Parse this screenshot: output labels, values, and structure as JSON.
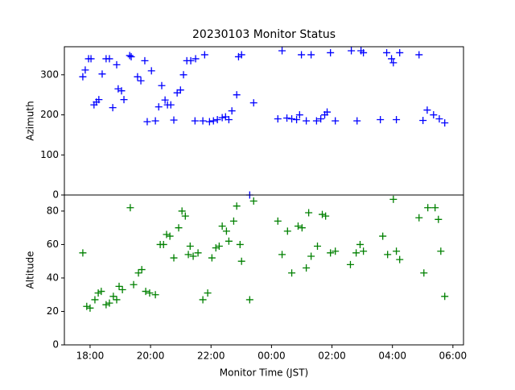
{
  "chart_data": [
    {
      "type": "scatter",
      "title": "20230103 Monitor Status",
      "ylabel": "Azimuth",
      "color": "#0000ff",
      "marker": "+",
      "xlim": [
        17.15,
        30.35
      ],
      "ylim": [
        0,
        370
      ],
      "yticks": [
        0,
        100,
        200,
        300
      ],
      "x": [
        17.76,
        17.84,
        17.95,
        18.03,
        18.13,
        18.21,
        18.29,
        18.4,
        18.53,
        18.64,
        18.75,
        18.88,
        18.93,
        19.04,
        19.12,
        19.31,
        19.36,
        19.57,
        19.68,
        19.81,
        19.89,
        20.03,
        20.16,
        20.27,
        20.37,
        20.48,
        20.56,
        20.67,
        20.77,
        20.88,
        20.99,
        21.09,
        21.2,
        21.33,
        21.49,
        21.47,
        21.79,
        21.73,
        21.95,
        22.08,
        22.21,
        22.37,
        22.48,
        22.59,
        22.69,
        22.85,
        22.91,
        23.01,
        23.28,
        23.41,
        24.21,
        24.35,
        24.51,
        24.67,
        24.83,
        24.93,
        24.99,
        25.15,
        25.31,
        25.49,
        25.63,
        25.76,
        25.84,
        25.95,
        26.11,
        26.64,
        26.83,
        26.96,
        27.04,
        27.6,
        27.81,
        27.97,
        28.03,
        28.13,
        28.24,
        28.88,
        29.01,
        29.15,
        29.36,
        29.55,
        29.73
      ],
      "values": [
        295,
        312,
        340,
        340,
        225,
        232,
        238,
        302,
        340,
        340,
        218,
        325,
        265,
        260,
        238,
        348,
        345,
        295,
        285,
        335,
        183,
        310,
        185,
        220,
        273,
        237,
        225,
        225,
        187,
        255,
        262,
        300,
        335,
        335,
        340,
        185,
        350,
        185,
        183,
        185,
        188,
        193,
        195,
        188,
        210,
        250,
        345,
        350,
        0,
        230,
        190,
        360,
        192,
        190,
        188,
        200,
        350,
        185,
        350,
        185,
        190,
        200,
        207,
        355,
        185,
        360,
        185,
        360,
        355,
        188,
        355,
        340,
        330,
        188,
        355,
        350,
        186,
        212,
        200,
        190,
        180
      ]
    },
    {
      "type": "scatter",
      "ylabel": "Altitude",
      "xlabel": "Monitor Time (JST)",
      "color": "#008000",
      "marker": "+",
      "xlim": [
        17.15,
        30.35
      ],
      "ylim": [
        0,
        89.6
      ],
      "yticks": [
        0,
        20,
        40,
        60,
        80
      ],
      "xticks": [
        {
          "value": 18,
          "label": "18:00"
        },
        {
          "value": 20,
          "label": "20:00"
        },
        {
          "value": 22,
          "label": "22:00"
        },
        {
          "value": 24,
          "label": "00:00"
        },
        {
          "value": 26,
          "label": "02:00"
        },
        {
          "value": 28,
          "label": "04:00"
        },
        {
          "value": 30,
          "label": "06:00"
        }
      ],
      "x": [
        17.76,
        17.89,
        18.0,
        18.16,
        18.27,
        18.37,
        18.53,
        18.64,
        18.77,
        18.88,
        18.96,
        19.07,
        19.33,
        19.44,
        19.6,
        19.71,
        19.84,
        19.97,
        20.16,
        20.32,
        20.43,
        20.53,
        20.64,
        20.77,
        20.93,
        21.04,
        21.15,
        21.25,
        21.31,
        21.41,
        21.57,
        21.73,
        21.89,
        22.03,
        22.16,
        22.27,
        22.37,
        22.51,
        22.59,
        22.75,
        22.85,
        22.96,
        23.01,
        23.28,
        23.41,
        24.21,
        24.35,
        24.53,
        24.67,
        24.88,
        25.01,
        25.15,
        25.23,
        25.31,
        25.52,
        25.68,
        25.79,
        25.95,
        26.11,
        26.61,
        26.8,
        26.93,
        27.04,
        27.68,
        27.84,
        28.03,
        28.13,
        28.24,
        28.88,
        29.04,
        29.17,
        29.41,
        29.52,
        29.6,
        29.73
      ],
      "values": [
        55,
        23,
        22,
        27,
        31,
        32,
        24,
        25,
        29,
        27,
        35,
        33,
        82,
        36,
        43,
        45,
        32,
        31,
        30,
        60,
        60,
        66,
        65,
        52,
        70,
        80,
        77,
        54,
        59,
        53,
        55,
        27,
        31,
        52,
        58,
        59,
        71,
        68,
        62,
        74,
        83,
        60,
        50,
        27,
        86,
        74,
        54,
        68,
        43,
        71,
        70,
        46,
        79,
        53,
        59,
        78,
        77,
        55,
        56,
        48,
        55,
        60,
        56,
        65,
        54,
        87,
        56,
        51,
        76,
        43,
        82,
        82,
        75,
        56,
        29
      ]
    }
  ]
}
